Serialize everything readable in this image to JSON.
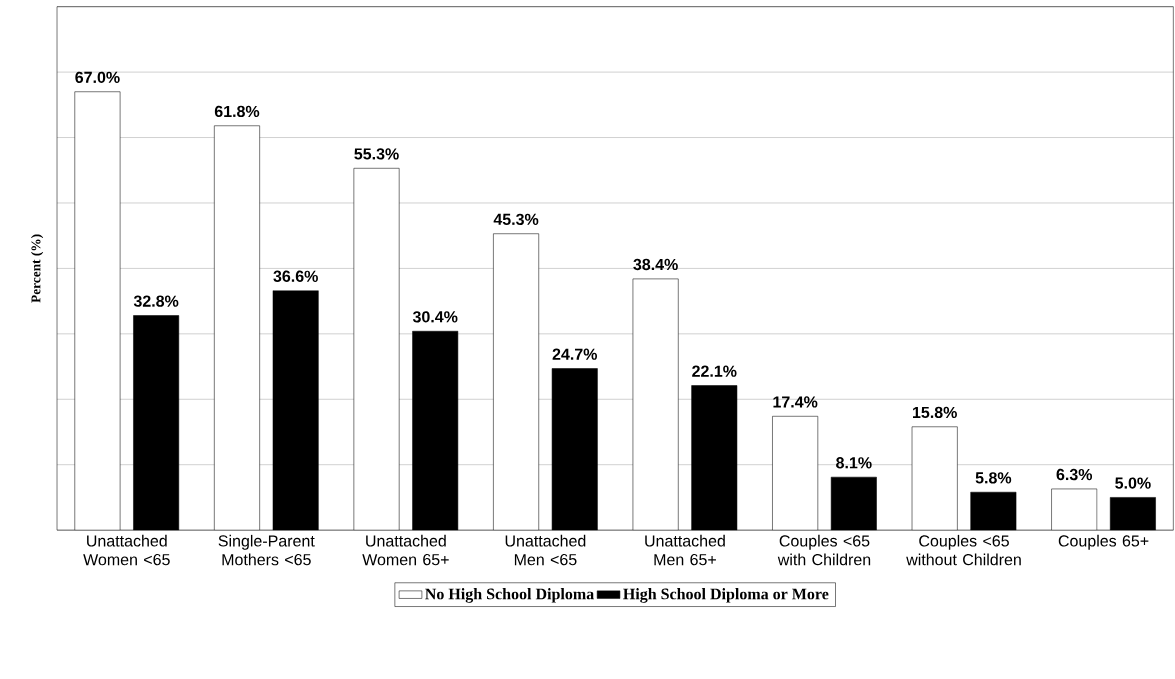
{
  "chart_data": {
    "type": "bar",
    "ylabel": "Percent (%)",
    "categories": [
      "Unattached Women <65",
      "Single-Parent Mothers <65",
      "Unattached Women 65+",
      "Unattached Men <65",
      "Unattached Men 65+",
      "Couples <65 with Children",
      "Couples <65 without Children",
      "Couples 65+"
    ],
    "series": [
      {
        "name": "No High School Diploma",
        "color": "#ffffff",
        "values": [
          67.0,
          61.8,
          55.3,
          45.3,
          38.4,
          17.4,
          15.8,
          6.3
        ],
        "value_labels": [
          "67.0%",
          "61.8%",
          "55.3%",
          "45.3%",
          "38.4%",
          "17.4%",
          "15.8%",
          "6.3%"
        ]
      },
      {
        "name": "High School Diploma or More",
        "color": "#000000",
        "values": [
          32.8,
          36.6,
          30.4,
          24.7,
          22.1,
          8.1,
          5.8,
          5.0
        ],
        "value_labels": [
          "32.8%",
          "36.6%",
          "30.4%",
          "24.7%",
          "22.1%",
          "8.1%",
          "5.8%",
          "5.0%"
        ]
      }
    ],
    "ylim": [
      0,
      80
    ],
    "yticks": [
      {
        "value": 0,
        "label": null
      },
      {
        "value": 10,
        "label": null
      },
      {
        "value": 20,
        "label": null
      },
      {
        "value": 30,
        "label": null
      },
      {
        "value": 40,
        "label": null
      },
      {
        "value": 50,
        "label": null
      },
      {
        "value": 60,
        "label": null
      },
      {
        "value": 70,
        "label": null
      },
      {
        "value": 80,
        "label": null
      }
    ],
    "grid": "y",
    "legend": "bottom",
    "tick_labels": "x"
  }
}
